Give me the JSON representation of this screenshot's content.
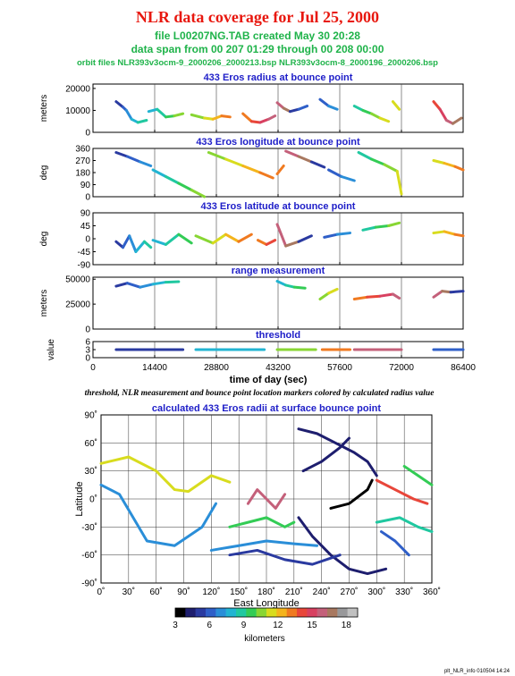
{
  "header": {
    "title": "NLR data coverage for Jul 25, 2000",
    "file_line": "file L00207NG.TAB created May 30 20:28",
    "span_line": "data span from 00 207 01:29 through 00 208 00:00",
    "orbit_line": "orbit files NLR393v3ocm-9_2000206_2000213.bsp NLR393v3ocm-8_2000196_2000206.bsp"
  },
  "time_axis": {
    "label": "time of day (sec)",
    "ticks": [
      "0",
      "14400",
      "28800",
      "43200",
      "57600",
      "72000",
      "86400"
    ],
    "range": [
      0,
      86400
    ]
  },
  "caption": "threshold, NLR measurement and bounce point location markers colored by calculated radius value",
  "footer": "plt_NLR_info 010504 14:24",
  "colorbar": {
    "label": "kilometers",
    "ticks": [
      "3",
      "6",
      "9",
      "12",
      "15",
      "18"
    ],
    "range": [
      3,
      19
    ],
    "colors": [
      "#000000",
      "#1e1e6e",
      "#2a3aa0",
      "#2f5fc8",
      "#2a8ed8",
      "#22b4d2",
      "#20c8a0",
      "#33cc55",
      "#88d633",
      "#d8dc1e",
      "#f4b41c",
      "#f07a20",
      "#e8463a",
      "#d84060",
      "#c4607a",
      "#a87860",
      "#98989a",
      "#c0c0c0"
    ]
  },
  "chart_data": [
    {
      "type": "scatter",
      "title": "433 Eros radius at bounce point",
      "ylabel": "meters",
      "yticks": [
        "20000",
        "10000",
        "0"
      ],
      "ylim": [
        0,
        22000
      ],
      "xlim": [
        0,
        86400
      ],
      "series": [
        {
          "x": [
            5400,
            7000,
            7800,
            9000,
            10500,
            12500
          ],
          "y": [
            14000,
            11500,
            10000,
            6000,
            4500,
            5500
          ]
        },
        {
          "x": [
            13000,
            15000,
            17000,
            19000,
            21000
          ],
          "y": [
            9500,
            10500,
            7000,
            7500,
            8500
          ]
        },
        {
          "x": [
            23000,
            26000,
            28000,
            30000,
            32000
          ],
          "y": [
            8000,
            6500,
            6000,
            7500,
            7000
          ]
        },
        {
          "x": [
            35000,
            37000,
            39000,
            41000,
            42500
          ],
          "y": [
            8500,
            5000,
            4500,
            6000,
            7500
          ]
        },
        {
          "x": [
            43000,
            44500,
            46000,
            48000,
            50000
          ],
          "y": [
            13500,
            11000,
            9500,
            10500,
            12000
          ]
        },
        {
          "x": [
            53000,
            55000,
            57000
          ],
          "y": [
            15000,
            12000,
            10500
          ]
        },
        {
          "x": [
            61000,
            63000,
            65000,
            67000,
            69000
          ],
          "y": [
            12000,
            10000,
            8500,
            6500,
            5000
          ]
        },
        {
          "x": [
            70000,
            71500
          ],
          "y": [
            14000,
            10500
          ]
        },
        {
          "x": [
            79500,
            81000,
            82500,
            84000,
            86000
          ],
          "y": [
            14000,
            10500,
            5500,
            4000,
            6500
          ]
        }
      ]
    },
    {
      "type": "scatter",
      "title": "433 Eros longitude at bounce point",
      "ylabel": "deg",
      "yticks": [
        "360",
        "270",
        "180",
        "90",
        "0"
      ],
      "ylim": [
        0,
        360
      ],
      "xlim": [
        0,
        86400
      ],
      "series": [
        {
          "x": [
            5400,
            8000,
            11000,
            13500
          ],
          "y": [
            330,
            300,
            260,
            230
          ]
        },
        {
          "x": [
            14000,
            17000,
            20000,
            23000,
            26000
          ],
          "y": [
            200,
            150,
            100,
            50,
            0
          ]
        },
        {
          "x": [
            27000,
            31000,
            35000,
            39000,
            42000
          ],
          "y": [
            330,
            280,
            230,
            180,
            140
          ]
        },
        {
          "x": [
            43000,
            44500
          ],
          "y": [
            170,
            230
          ]
        },
        {
          "x": [
            45000,
            48000,
            51000,
            54000
          ],
          "y": [
            340,
            300,
            260,
            220
          ]
        },
        {
          "x": [
            55000,
            58000,
            61000
          ],
          "y": [
            200,
            150,
            120
          ]
        },
        {
          "x": [
            62000,
            65000,
            68000,
            71000,
            72000
          ],
          "y": [
            330,
            280,
            240,
            190,
            20
          ]
        },
        {
          "x": [
            79500,
            82000,
            84500,
            86400
          ],
          "y": [
            270,
            250,
            225,
            200
          ]
        }
      ]
    },
    {
      "type": "scatter",
      "title": "433 Eros latitude at bounce point",
      "ylabel": "deg",
      "yticks": [
        "90",
        "45",
        "0",
        "-45",
        "-90"
      ],
      "ylim": [
        -90,
        90
      ],
      "xlim": [
        0,
        86400
      ],
      "series": [
        {
          "x": [
            5400,
            7000,
            8500,
            10000,
            12000,
            13500
          ],
          "y": [
            -10,
            -30,
            10,
            -45,
            -10,
            -30
          ]
        },
        {
          "x": [
            14000,
            17000,
            20000,
            23000
          ],
          "y": [
            -5,
            -20,
            15,
            -15
          ]
        },
        {
          "x": [
            24000,
            28000,
            31000,
            34000,
            37000
          ],
          "y": [
            10,
            -15,
            15,
            -10,
            15
          ]
        },
        {
          "x": [
            38500,
            40500,
            42500
          ],
          "y": [
            -5,
            -20,
            -5
          ]
        },
        {
          "x": [
            43000,
            45000,
            48000,
            51000
          ],
          "y": [
            50,
            -25,
            -10,
            10
          ]
        },
        {
          "x": [
            54000,
            57000,
            60000
          ],
          "y": [
            5,
            15,
            20
          ]
        },
        {
          "x": [
            63000,
            66000,
            69000,
            71500
          ],
          "y": [
            30,
            40,
            45,
            55
          ]
        },
        {
          "x": [
            79500,
            82000,
            84500,
            86400
          ],
          "y": [
            20,
            25,
            15,
            10
          ]
        }
      ]
    },
    {
      "type": "scatter",
      "title": "range measurement",
      "ylabel": "meters",
      "yticks": [
        "50000",
        "25000",
        "0"
      ],
      "ylim": [
        0,
        52000
      ],
      "xlim": [
        0,
        86400
      ],
      "series": [
        {
          "x": [
            5400,
            8000,
            11000,
            14000,
            17000,
            20000
          ],
          "y": [
            43000,
            46000,
            42000,
            45000,
            47000,
            47500
          ]
        },
        {
          "x": [
            43000,
            45000,
            47000,
            49500
          ],
          "y": [
            48000,
            44000,
            42000,
            41000
          ]
        },
        {
          "x": [
            53000,
            55000,
            57000
          ],
          "y": [
            30000,
            36000,
            40000
          ]
        },
        {
          "x": [
            61000,
            64000,
            67000,
            70000,
            71500
          ],
          "y": [
            30000,
            32000,
            33000,
            35000,
            31000
          ]
        },
        {
          "x": [
            79500,
            81500,
            83500,
            86400
          ],
          "y": [
            32000,
            38000,
            37000,
            38000
          ]
        }
      ]
    },
    {
      "type": "scatter",
      "title": "threshold",
      "ylabel": "value",
      "yticks": [
        "6",
        "3",
        "0"
      ],
      "ylim": [
        0,
        6
      ],
      "xlim": [
        0,
        86400
      ],
      "series": [
        {
          "x": [
            5400,
            21000
          ],
          "y": [
            3,
            3
          ]
        },
        {
          "x": [
            24000,
            40000
          ],
          "y": [
            3,
            3
          ]
        },
        {
          "x": [
            43000,
            52000
          ],
          "y": [
            3,
            3
          ]
        },
        {
          "x": [
            53500,
            60000
          ],
          "y": [
            3,
            3
          ]
        },
        {
          "x": [
            61000,
            72000
          ],
          "y": [
            3,
            3
          ]
        },
        {
          "x": [
            79500,
            86400
          ],
          "y": [
            3,
            3
          ]
        }
      ]
    },
    {
      "type": "line",
      "title": "calculated 433 Eros radii at surface bounce point",
      "xlabel": "East Longitude",
      "ylabel": "Latitude",
      "xticks": [
        "0˚",
        "30˚",
        "60˚",
        "90˚",
        "120˚",
        "150˚",
        "180˚",
        "210˚",
        "240˚",
        "270˚",
        "300˚",
        "330˚",
        "360˚"
      ],
      "yticks": [
        "90˚",
        "60˚",
        "30˚",
        "0˚",
        "-30˚",
        "-60˚",
        "-90˚"
      ],
      "xlim": [
        0,
        360
      ],
      "ylim": [
        -90,
        90
      ],
      "series": [
        {
          "lon": [
            0,
            30,
            60,
            80,
            95,
            120,
            140
          ],
          "lat": [
            38,
            45,
            30,
            10,
            8,
            25,
            18
          ],
          "r": 11
        },
        {
          "lon": [
            0,
            20,
            35,
            50,
            80,
            110,
            125
          ],
          "lat": [
            15,
            5,
            -20,
            -45,
            -50,
            -30,
            -5
          ],
          "r": 7
        },
        {
          "lon": [
            140,
            160,
            180,
            200,
            210
          ],
          "lat": [
            -30,
            -25,
            -20,
            -30,
            -25
          ],
          "r": 10
        },
        {
          "lon": [
            160,
            170,
            180,
            190,
            200
          ],
          "lat": [
            -5,
            10,
            0,
            -10,
            5
          ],
          "r": 16
        },
        {
          "lon": [
            120,
            150,
            180,
            210,
            235
          ],
          "lat": [
            -55,
            -50,
            -45,
            -48,
            -50
          ],
          "r": 7
        },
        {
          "lon": [
            215,
            235,
            255,
            275,
            290,
            300
          ],
          "lat": [
            75,
            70,
            60,
            50,
            40,
            25
          ],
          "r": 4
        },
        {
          "lon": [
            215,
            230,
            250,
            270,
            290,
            310
          ],
          "lat": [
            -20,
            -40,
            -60,
            -75,
            -80,
            -75
          ],
          "r": 4
        },
        {
          "lon": [
            220,
            240,
            260,
            270
          ],
          "lat": [
            30,
            40,
            55,
            65
          ],
          "r": 4
        },
        {
          "lon": [
            300,
            320,
            340,
            355
          ],
          "lat": [
            20,
            10,
            0,
            -5
          ],
          "r": 14
        },
        {
          "lon": [
            250,
            270,
            290,
            295
          ],
          "lat": [
            -10,
            -5,
            10,
            20
          ],
          "r": 3
        },
        {
          "lon": [
            140,
            170,
            200,
            230,
            260
          ],
          "lat": [
            -60,
            -55,
            -65,
            -70,
            -60
          ],
          "r": 5
        },
        {
          "lon": [
            300,
            325,
            345,
            360
          ],
          "lat": [
            -25,
            -20,
            -30,
            -35
          ],
          "r": 9
        },
        {
          "lon": [
            305,
            320,
            335
          ],
          "lat": [
            -35,
            -45,
            -60
          ],
          "r": 6
        },
        {
          "lon": [
            330,
            345,
            360
          ],
          "lat": [
            35,
            25,
            15
          ],
          "r": 10
        }
      ]
    }
  ]
}
